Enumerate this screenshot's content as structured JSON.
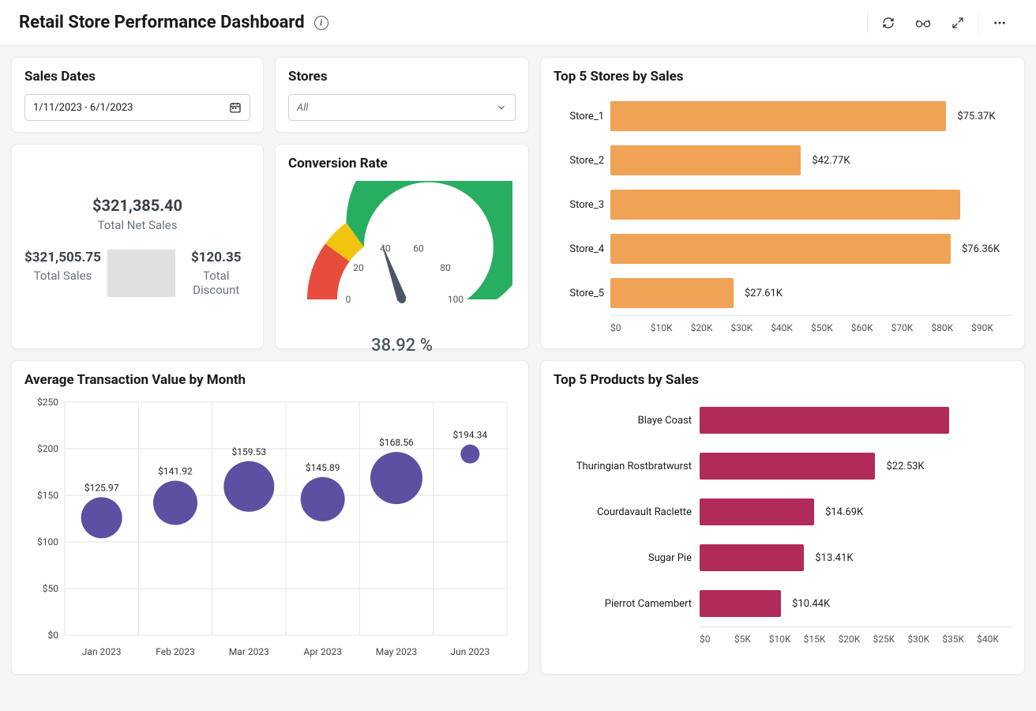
{
  "header": {
    "title": "Retail Store Performance Dashboard"
  },
  "filters": {
    "dates_label": "Sales Dates",
    "dates_value": "1/11/2023 - 6/1/2023",
    "stores_label": "Stores",
    "stores_value": "All"
  },
  "kpis": {
    "net_sales_value": "$321,385.40",
    "net_sales_label": "Total Net Sales",
    "total_sales_value": "$321,505.75",
    "total_sales_label": "Total Sales",
    "total_discount_value": "$120.35",
    "total_discount_label": "Total Discount"
  },
  "gauge": {
    "title": "Conversion Rate",
    "value": 38.92,
    "value_display": "38.92 %",
    "min": 0,
    "max": 100,
    "ticks": [
      0,
      20,
      40,
      60,
      80,
      100
    ],
    "segments": [
      {
        "from": 0,
        "to": 20,
        "color": "#e74c3c"
      },
      {
        "from": 20,
        "to": 30,
        "color": "#f1c40f"
      },
      {
        "from": 30,
        "to": 100,
        "color": "#27ae60"
      }
    ],
    "needle_color": "#4b5563",
    "tick_fontsize": 12,
    "value_fontsize": 22
  },
  "top_stores": {
    "title": "Top 5 Stores by Sales",
    "type": "hbar",
    "xlim": [
      0,
      90000
    ],
    "xtick_step": 10000,
    "xtick_labels": [
      "$0",
      "$10K",
      "$20K",
      "$30K",
      "$40K",
      "$50K",
      "$60K",
      "$70K",
      "$80K",
      "$90K"
    ],
    "bar_color": "#f0a355",
    "items": [
      {
        "label": "Store_1",
        "value": 75370,
        "display": "$75.37K"
      },
      {
        "label": "Store_2",
        "value": 42770,
        "display": "$42.77K"
      },
      {
        "label": "Store_3",
        "value": 78500,
        "display": ""
      },
      {
        "label": "Store_4",
        "value": 76360,
        "display": "$76.36K"
      },
      {
        "label": "Store_5",
        "value": 27610,
        "display": "$27.61K"
      }
    ]
  },
  "avg_txn": {
    "title": "Average Transaction Value by Month",
    "type": "bubble",
    "ylim": [
      0,
      250
    ],
    "ytick_step": 50,
    "ytick_labels": [
      "$0",
      "$50",
      "$100",
      "$150",
      "$200",
      "$250"
    ],
    "categories": [
      "Jan 2023",
      "Feb 2023",
      "Mar 2023",
      "Apr 2023",
      "May 2023",
      "Jun 2023"
    ],
    "bubble_color": "#5b50a1",
    "grid_color": "#e5e5e5",
    "points": [
      {
        "y": 125.97,
        "r": 26,
        "display": "$125.97"
      },
      {
        "y": 141.92,
        "r": 28,
        "display": "$141.92"
      },
      {
        "y": 159.53,
        "r": 32,
        "display": "$159.53"
      },
      {
        "y": 145.89,
        "r": 28,
        "display": "$145.89"
      },
      {
        "y": 168.56,
        "r": 33,
        "display": "$168.56"
      },
      {
        "y": 194.34,
        "r": 12,
        "display": "$194.34"
      }
    ]
  },
  "top_products": {
    "title": "Top 5 Products by Sales",
    "type": "hbar",
    "xlim": [
      0,
      40000
    ],
    "xtick_step": 5000,
    "xtick_labels": [
      "$0",
      "$5K",
      "$10K",
      "$15K",
      "$20K",
      "$25K",
      "$30K",
      "$35K",
      "$40K"
    ],
    "bar_color": "#b02a5a",
    "items": [
      {
        "label": "Blaye Coast",
        "value": 32000,
        "display": ""
      },
      {
        "label": "Thuringian Rostbratwurst",
        "value": 22530,
        "display": "$22.53K"
      },
      {
        "label": "Courdavault Raclette",
        "value": 14690,
        "display": "$14.69K"
      },
      {
        "label": "Sugar Pie",
        "value": 13410,
        "display": "$13.41K"
      },
      {
        "label": "Pierrot Camembert",
        "value": 10440,
        "display": "$10.44K"
      }
    ]
  }
}
